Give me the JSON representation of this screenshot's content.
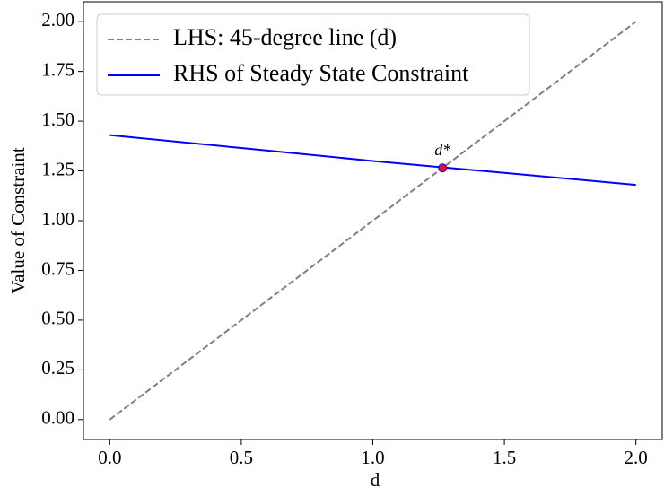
{
  "chart_data": {
    "type": "line",
    "xlabel": "d",
    "ylabel": "Value of Constraint",
    "x": [
      0,
      0.5,
      1.0,
      1.5,
      2.0
    ],
    "series": [
      {
        "name": "LHS: 45-degree line (d)",
        "color": "#808080",
        "dashed": true,
        "values": [
          0,
          0.5,
          1.0,
          1.5,
          2.0
        ]
      },
      {
        "name": "RHS of Steady State Constraint",
        "color": "#0000ff",
        "dashed": false,
        "values": [
          1.43,
          1.365,
          1.3,
          1.24,
          1.18
        ]
      }
    ],
    "points": [
      {
        "label": "d*",
        "x": 1.265,
        "y": 1.265,
        "color": "#e0102a"
      }
    ],
    "xlim": [
      -0.1,
      2.1
    ],
    "ylim": [
      -0.1,
      2.1
    ],
    "xticks": [
      {
        "value": 0,
        "label": "0.0"
      },
      {
        "value": 0.5,
        "label": "0.5"
      },
      {
        "value": 1,
        "label": "1.0"
      },
      {
        "value": 1.5,
        "label": "1.5"
      },
      {
        "value": 2,
        "label": "2.0"
      }
    ],
    "yticks": [
      {
        "value": 0,
        "label": "0.00"
      },
      {
        "value": 0.25,
        "label": "0.25"
      },
      {
        "value": 0.5,
        "label": "0.50"
      },
      {
        "value": 0.75,
        "label": "0.75"
      },
      {
        "value": 1,
        "label": "1.00"
      },
      {
        "value": 1.25,
        "label": "1.25"
      },
      {
        "value": 1.5,
        "label": "1.50"
      },
      {
        "value": 1.75,
        "label": "1.75"
      },
      {
        "value": 2,
        "label": "2.00"
      }
    ],
    "grid": false,
    "legend": "upper left"
  }
}
